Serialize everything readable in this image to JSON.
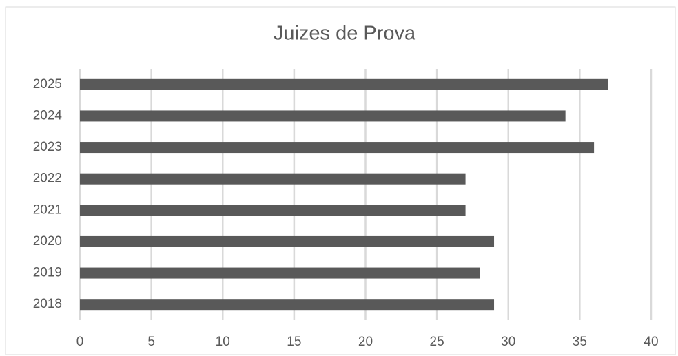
{
  "chart_data": {
    "type": "bar",
    "orientation": "horizontal",
    "title": "Juizes de Prova",
    "categories": [
      "2018",
      "2019",
      "2020",
      "2021",
      "2022",
      "2023",
      "2024",
      "2025"
    ],
    "values": [
      29,
      28,
      29,
      27,
      27,
      36,
      34,
      37
    ],
    "color": "#595959",
    "xlim": [
      0,
      40
    ],
    "xticks": [
      0,
      5,
      10,
      15,
      20,
      25,
      30,
      35,
      40
    ],
    "grid": true
  }
}
